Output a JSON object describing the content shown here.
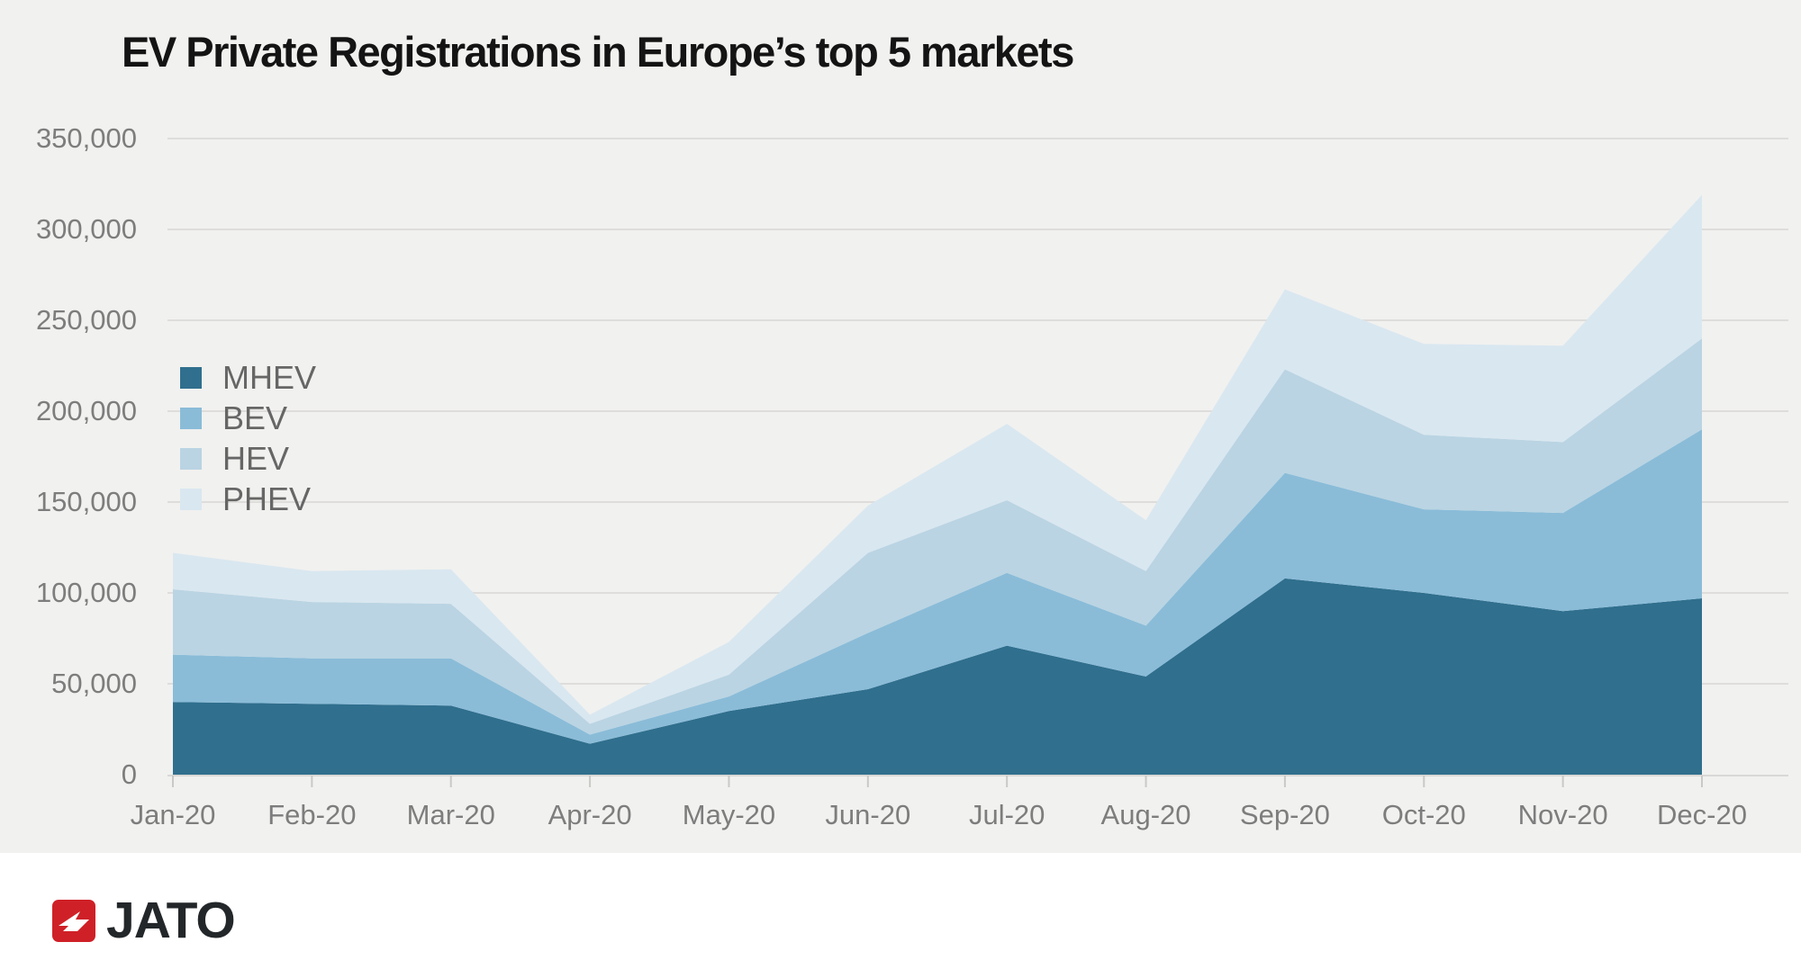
{
  "title": "EV Private Registrations in Europe’s top 5 markets",
  "logo": {
    "text": "JATO",
    "mark_color": "#cf2027"
  },
  "colors": {
    "panel_background": "#f1f1ef",
    "page_background": "#ffffff",
    "gridline": "#dedddb",
    "axis_line": "#d8d8d6",
    "tick": "#c9c9c7",
    "axis_text": "#7d7d7d",
    "legend_text": "#666666",
    "title_text": "#141414"
  },
  "chart_data": {
    "type": "area",
    "stacked": true,
    "title": "EV Private Registrations in Europe’s top 5 markets",
    "xlabel": "",
    "ylabel": "",
    "ylim": [
      0,
      350000
    ],
    "ytick_step": 50000,
    "grid": "horizontal",
    "legend_position": "upper-left-inside",
    "categories": [
      "Jan-20",
      "Feb-20",
      "Mar-20",
      "Apr-20",
      "May-20",
      "Jun-20",
      "Jul-20",
      "Aug-20",
      "Sep-20",
      "Oct-20",
      "Nov-20",
      "Dec-20"
    ],
    "series": [
      {
        "name": "MHEV",
        "color": "#306f8e",
        "values": [
          40000,
          39000,
          38000,
          17000,
          35000,
          47000,
          71000,
          54000,
          108000,
          100000,
          90000,
          97000
        ]
      },
      {
        "name": "BEV",
        "color": "#8abcd8",
        "values": [
          26000,
          25000,
          26000,
          5000,
          8000,
          31000,
          40000,
          28000,
          58000,
          46000,
          54000,
          93000
        ]
      },
      {
        "name": "HEV",
        "color": "#bad4e3",
        "values": [
          36000,
          31000,
          30000,
          6000,
          12000,
          44000,
          40000,
          30000,
          57000,
          41000,
          39000,
          50000
        ]
      },
      {
        "name": "PHEV",
        "color": "#d9e7f0",
        "values": [
          20000,
          17000,
          19000,
          5000,
          18000,
          26000,
          42000,
          28000,
          44000,
          50000,
          53000,
          79000
        ]
      }
    ],
    "y_ticks": [
      {
        "value": 0,
        "label": "0"
      },
      {
        "value": 50000,
        "label": "50,000"
      },
      {
        "value": 100000,
        "label": "100,000"
      },
      {
        "value": 150000,
        "label": "150,000"
      },
      {
        "value": 200000,
        "label": "200,000"
      },
      {
        "value": 250000,
        "label": "250,000"
      },
      {
        "value": 300000,
        "label": "300,000"
      },
      {
        "value": 350000,
        "label": "350,000"
      }
    ]
  }
}
